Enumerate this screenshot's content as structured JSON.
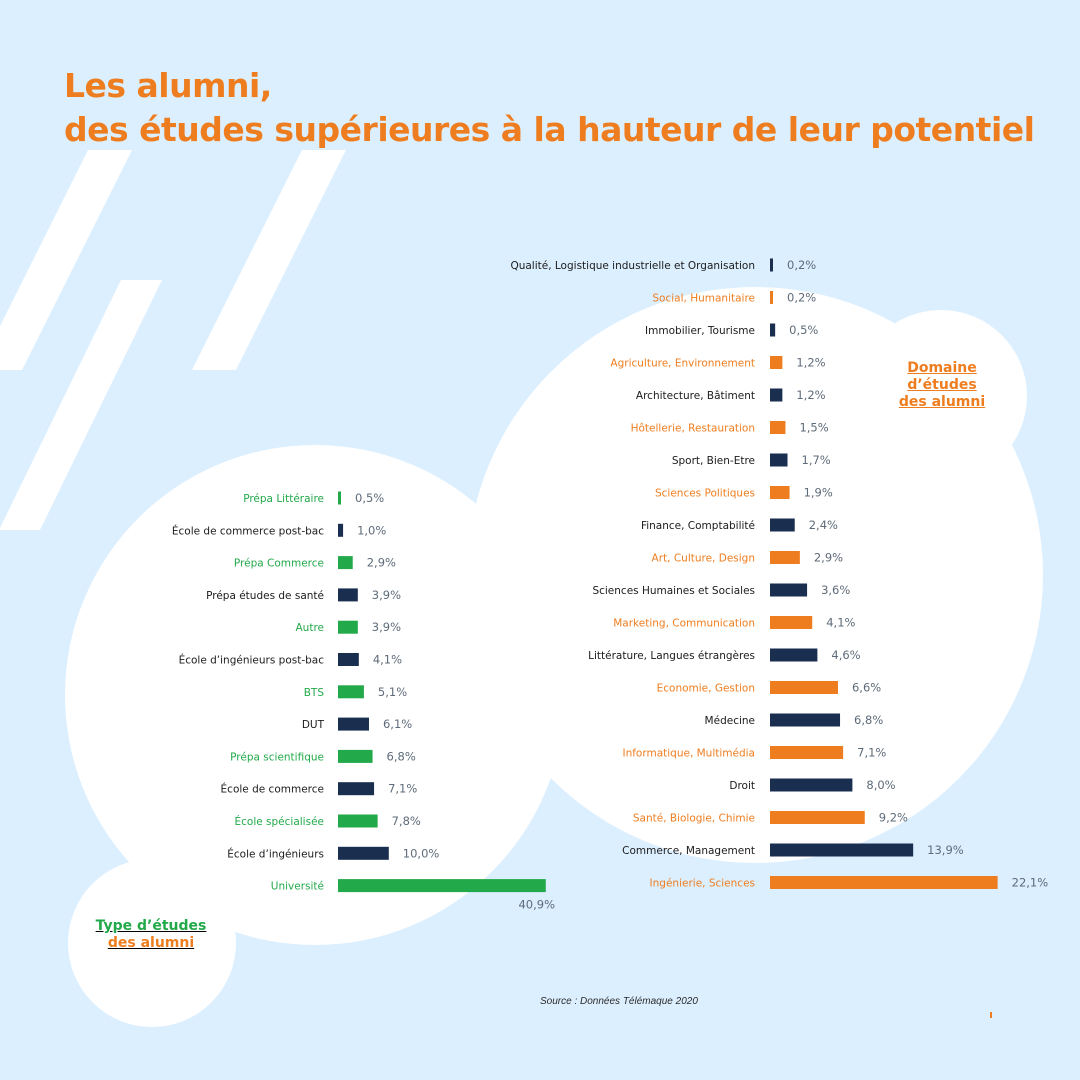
{
  "title": {
    "line1": "Les alumni,",
    "line2": "des études supérieures à la hauteur de leur potentiel"
  },
  "labels": {
    "domain_line1": "Domaine",
    "domain_line2": "d’études",
    "domain_line3": "des alumni",
    "type_line1": "Type d’études",
    "type_line2": "des alumni"
  },
  "source": "Source : Données Télémaque 2020",
  "colors": {
    "background": "#dcefff",
    "bubble": "#ffffff",
    "title": "#ee7d1f",
    "orange": "#ee7d1f",
    "navy": "#1a2e50",
    "green": "#22a94a",
    "value_text": "#5e6b79"
  },
  "chart_data": [
    {
      "type": "bar",
      "orientation": "horizontal",
      "title": "Type d’études des alumni",
      "categories": [
        "Prépa Littéraire",
        "École de commerce post-bac",
        "Prépa Commerce",
        "Prépa études de santé",
        "Autre",
        "École d’ingénieurs post-bac",
        "BTS",
        "DUT",
        "Prépa scientifique",
        "École de commerce",
        "École spécialisée",
        "École d’ingénieurs",
        "Université"
      ],
      "values": [
        0.5,
        1.0,
        2.9,
        3.9,
        3.9,
        4.1,
        5.1,
        6.1,
        6.8,
        7.1,
        7.8,
        10.0,
        40.9
      ],
      "value_labels": [
        "0,5%",
        "1,0%",
        "2,9%",
        "3,9%",
        "3,9%",
        "4,1%",
        "5,1%",
        "6,1%",
        "6,8%",
        "7,1%",
        "7,8%",
        "10,0%",
        "40,9%"
      ],
      "colors": [
        "green",
        "navy",
        "green",
        "navy",
        "green",
        "navy",
        "green",
        "navy",
        "green",
        "navy",
        "green",
        "navy",
        "green"
      ],
      "unit": "%"
    },
    {
      "type": "bar",
      "orientation": "horizontal",
      "title": "Domaine d’études des alumni",
      "categories": [
        "Qualité, Logistique industrielle et Organisation",
        "Social, Humanitaire",
        "Immobilier, Tourisme",
        "Agriculture, Environnement",
        "Architecture, Bâtiment",
        "Hôtellerie, Restauration",
        "Sport, Bien-Etre",
        "Sciences Politiques",
        "Finance, Comptabilité",
        "Art, Culture, Design",
        "Sciences Humaines et Sociales",
        "Marketing, Communication",
        "Littérature, Langues étrangères",
        "Economie, Gestion",
        "Médecine",
        "Informatique, Multimédia",
        "Droit",
        "Santé, Biologie, Chimie",
        "Commerce, Management",
        "Ingénierie, Sciences"
      ],
      "values": [
        0.2,
        0.2,
        0.5,
        1.2,
        1.2,
        1.5,
        1.7,
        1.9,
        2.4,
        2.9,
        3.6,
        4.1,
        4.6,
        6.6,
        6.8,
        7.1,
        8.0,
        9.2,
        13.9,
        22.1
      ],
      "value_labels": [
        "0,2%",
        "0,2%",
        "0,5%",
        "1,2%",
        "1,2%",
        "1,5%",
        "1,7%",
        "1,9%",
        "2,4%",
        "2,9%",
        "3,6%",
        "4,1%",
        "4,6%",
        "6,6%",
        "6,8%",
        "7,1%",
        "8,0%",
        "9,2%",
        "13,9%",
        "22,1%"
      ],
      "colors": [
        "navy",
        "orange",
        "navy",
        "orange",
        "navy",
        "orange",
        "navy",
        "orange",
        "navy",
        "orange",
        "navy",
        "orange",
        "navy",
        "orange",
        "navy",
        "orange",
        "navy",
        "orange",
        "navy",
        "orange"
      ],
      "unit": "%"
    }
  ]
}
